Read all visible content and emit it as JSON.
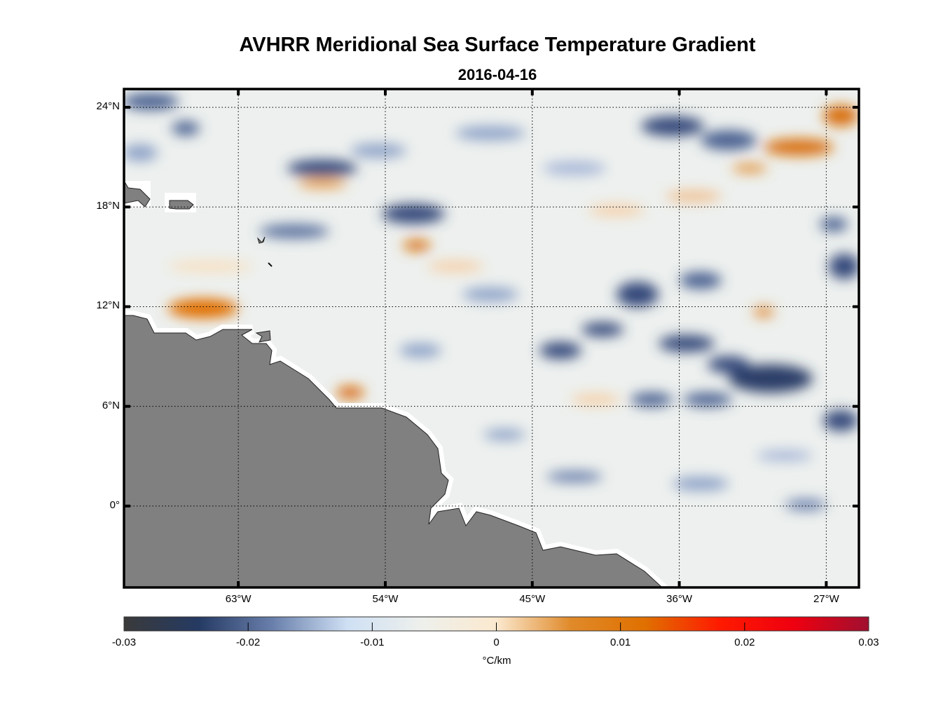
{
  "chart_data": {
    "type": "heatmap",
    "title": "AVHRR Meridional Sea Surface Temperature Gradient",
    "subtitle": "2016-04-16",
    "x_axis": {
      "range_deg_east": [
        -70,
        -25
      ],
      "ticks": [
        -63,
        -54,
        -45,
        -36,
        -27
      ],
      "tick_labels": [
        "63°W",
        "54°W",
        "45°W",
        "36°W",
        "27°W"
      ]
    },
    "y_axis": {
      "range_deg_north": [
        -4.9,
        25.1
      ],
      "ticks": [
        24,
        18,
        12,
        6,
        0
      ],
      "tick_labels": [
        "24°N",
        "18°N",
        "12°N",
        "6°N",
        "0°"
      ]
    },
    "grid": true,
    "colorbar": {
      "range": [
        -0.03,
        0.03
      ],
      "ticks": [
        -0.03,
        -0.02,
        -0.01,
        0,
        0.01,
        0.02,
        0.03
      ],
      "tick_labels": [
        "-0.03",
        "-0.02",
        "-0.01",
        "0",
        "0.01",
        "0.02",
        "0.03"
      ],
      "label": "°C/km",
      "placement": "bottom",
      "colors": [
        "#3a3a3a",
        "#253a63",
        "#6a80ac",
        "#cfe0f4",
        "#eef0ec",
        "#fbe9cf",
        "#e08a2a",
        "#e07000",
        "#ff1a00",
        "#ee0010",
        "#a01030"
      ]
    },
    "land_color": "#808080"
  }
}
